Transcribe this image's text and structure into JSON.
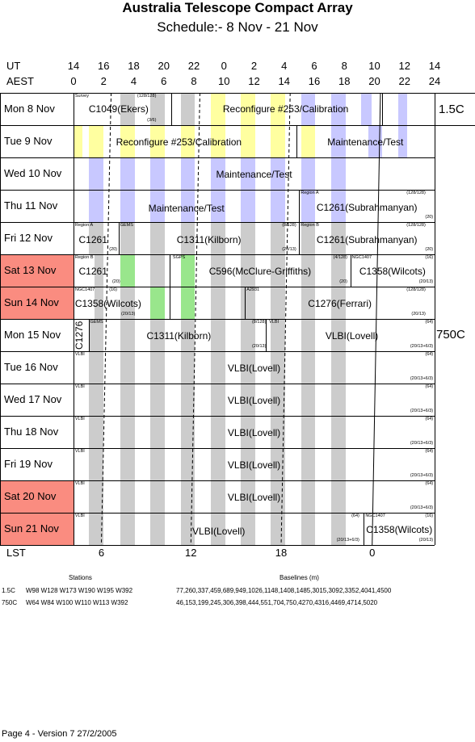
{
  "title": "Australia Telescope Compact Array",
  "subtitle": "Schedule:- 8  Nov - 21 Nov",
  "ut_label": "UT",
  "aest_label": "AEST",
  "lst_label": "LST",
  "ut_ticks": [
    "14",
    "16",
    "18",
    "20",
    "22",
    "0",
    "2",
    "4",
    "6",
    "8",
    "10",
    "12",
    "14"
  ],
  "aest_ticks": [
    "0",
    "2",
    "4",
    "6",
    "8",
    "10",
    "12",
    "14",
    "16",
    "18",
    "20",
    "22",
    "24"
  ],
  "lst_ticks": [
    "6",
    "12",
    "18",
    "0"
  ],
  "days": [
    {
      "label": "Mon   8  Nov",
      "weekend": false
    },
    {
      "label": "Tue   9  Nov",
      "weekend": false
    },
    {
      "label": "Wed  10 Nov",
      "weekend": false
    },
    {
      "label": "Thu   11 Nov",
      "weekend": false
    },
    {
      "label": "Fri    12 Nov",
      "weekend": false
    },
    {
      "label": "Sat   13 Nov",
      "weekend": true
    },
    {
      "label": "Sun   14 Nov",
      "weekend": true
    },
    {
      "label": "Mon  15 Nov",
      "weekend": false
    },
    {
      "label": "Tue   16 Nov",
      "weekend": false
    },
    {
      "label": "Wed  17 Nov",
      "weekend": false
    },
    {
      "label": "Thu   18 Nov",
      "weekend": false
    },
    {
      "label": "Fri    19 Nov",
      "weekend": false
    },
    {
      "label": "Sat   20 Nov",
      "weekend": true
    },
    {
      "label": "Sun   21 Nov",
      "weekend": true
    }
  ],
  "configs": [
    "1.5C",
    "750C"
  ],
  "entries": {
    "r0a": "C1049(Ekers)",
    "r0a_t": "Survey",
    "r0a_tr": "(128/128)",
    "r0a_br": "(3/6)",
    "r0b": "Reconfigure #253/Calibration",
    "r1a": "Reconfigure #253/Calibration",
    "r1b": "Maintenance/Test",
    "r2a": "Maintenance/Test",
    "r3a": "Maintenance/Test",
    "r3b": "C1261(Subrahmanyan)",
    "r3b_t": "Region A",
    "r3b_tr": "(128/128)",
    "r3b_br": "(20)",
    "r4a": "C1261",
    "r4a_t": "Region A",
    "r4a_br": "(20)",
    "r4b": "C1311(Kilborn)",
    "r4b_t": "GEMS",
    "r4b_tr": "(8/128)",
    "r4b_br": "(20/13)",
    "r4c": "C1261(Subrahmanyan)",
    "r4c_t": "Region B",
    "r4c_tr": "(128/128)",
    "r4c_br": "(20)",
    "r5a": "C1261",
    "r5a_t": "Region B",
    "r5a_br": "(20)",
    "r5b": "C596(McClure-Griffiths)",
    "r5b_t": "SGPS",
    "r5b_tr": "(4/128)",
    "r5b_br": "(20)",
    "r5c": "C1358(Wilcots)",
    "r5c_t": "NGC1407",
    "r5c_tr": "(16)",
    "r5c_br": "(20/13)",
    "r6a": "C1358(Wilcots)",
    "r6a_t": "NGC1407",
    "r6a_tr": "(16)",
    "r6a_br": "(20/13)",
    "r6b": "C1276(Ferrari)",
    "r6b_t": "A2931",
    "r6b_tr": "(128/128)",
    "r6b_br": "(20/13)",
    "r7a": "C1276",
    "r7b": "C1311(Kilborn)",
    "r7b_t": "GEMS",
    "r7b_tr": "(8/128)",
    "r7b_br": "(20/13)",
    "r7c": "VLBI(Lovell)",
    "r7c_t": "VLBI",
    "r7c_tr": "(64)",
    "r7c_br": "(20/13+6/3)",
    "vlbi": "VLBI(Lovell)",
    "vlbi_t": "VLBI",
    "vlbi_tr": "(64)",
    "vlbi_br": "(20/13+6/3)",
    "r13a_tr": "(64)",
    "r13a_br": "(20/13+6/3)",
    "r13b": "C1358(Wilcots)",
    "r13b_t": "NGC1407",
    "r13b_tr": "(16)",
    "r13b_br": "(20/13)"
  },
  "footer": {
    "stations_hdr": "Stations",
    "baselines_hdr": "Baselines (m)",
    "c1_name": "1.5C",
    "c1_stations": "W98 W128 W173 W190 W195 W392",
    "c1_baselines": "77,260,337,459,689,949,1026,1148,1408,1485,3015,3092,3352,4041,4500",
    "c2_name": "750C",
    "c2_stations": "W64 W84 W100 W110 W113 W392",
    "c2_baselines": "46,153,199,245,306,398,444,551,704,750,4270,4316,4469,4714,5020",
    "page": "Page 4 - Version 7  27/2/2005"
  },
  "colors": {
    "weekend": "#fa8c80",
    "yellow": "#ffffa0",
    "blue": "#c8c8ff",
    "gray": "#cccccc",
    "green": "#99e68c"
  }
}
